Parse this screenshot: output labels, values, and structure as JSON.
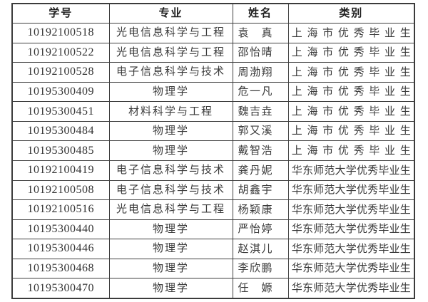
{
  "table": {
    "headers": [
      "学号",
      "专业",
      "姓名",
      "类别"
    ],
    "rows": [
      {
        "student_id": "10192100518",
        "major": "光电信息科学与工程",
        "name": "袁真",
        "category": "上海市优秀毕业生"
      },
      {
        "student_id": "10192100522",
        "major": "光电信息科学与工程",
        "name": "邵怡晴",
        "category": "上海市优秀毕业生"
      },
      {
        "student_id": "10192100528",
        "major": "电子信息科学与技术",
        "name": "周渤翔",
        "category": "上海市优秀毕业生"
      },
      {
        "student_id": "10195300409",
        "major": "物理学",
        "name": "危一凡",
        "category": "上海市优秀毕业生"
      },
      {
        "student_id": "10195300451",
        "major": "材料科学与工程",
        "name": "魏吉垚",
        "category": "上海市优秀毕业生"
      },
      {
        "student_id": "10195300484",
        "major": "物理学",
        "name": "郭又溪",
        "category": "上海市优秀毕业生"
      },
      {
        "student_id": "10195300485",
        "major": "物理学",
        "name": "戴智浩",
        "category": "上海市优秀毕业生"
      },
      {
        "student_id": "10192100419",
        "major": "电子信息科学与技术",
        "name": "龚丹妮",
        "category": "华东师范大学优秀毕业生"
      },
      {
        "student_id": "10192100508",
        "major": "电子信息科学与技术",
        "name": "胡鑫宇",
        "category": "华东师范大学优秀毕业生"
      },
      {
        "student_id": "10192100516",
        "major": "光电信息科学与工程",
        "name": "杨颖康",
        "category": "华东师范大学优秀毕业生"
      },
      {
        "student_id": "10195300440",
        "major": "物理学",
        "name": "严怡婷",
        "category": "华东师范大学优秀毕业生"
      },
      {
        "student_id": "10195300446",
        "major": "物理学",
        "name": "赵淇儿",
        "category": "华东师范大学优秀毕业生"
      },
      {
        "student_id": "10195300468",
        "major": "物理学",
        "name": "李欣鹏",
        "category": "华东师范大学优秀毕业生"
      },
      {
        "student_id": "10195300470",
        "major": "物理学",
        "name": "任嫄",
        "category": "华东师范大学优秀毕业生"
      }
    ]
  }
}
